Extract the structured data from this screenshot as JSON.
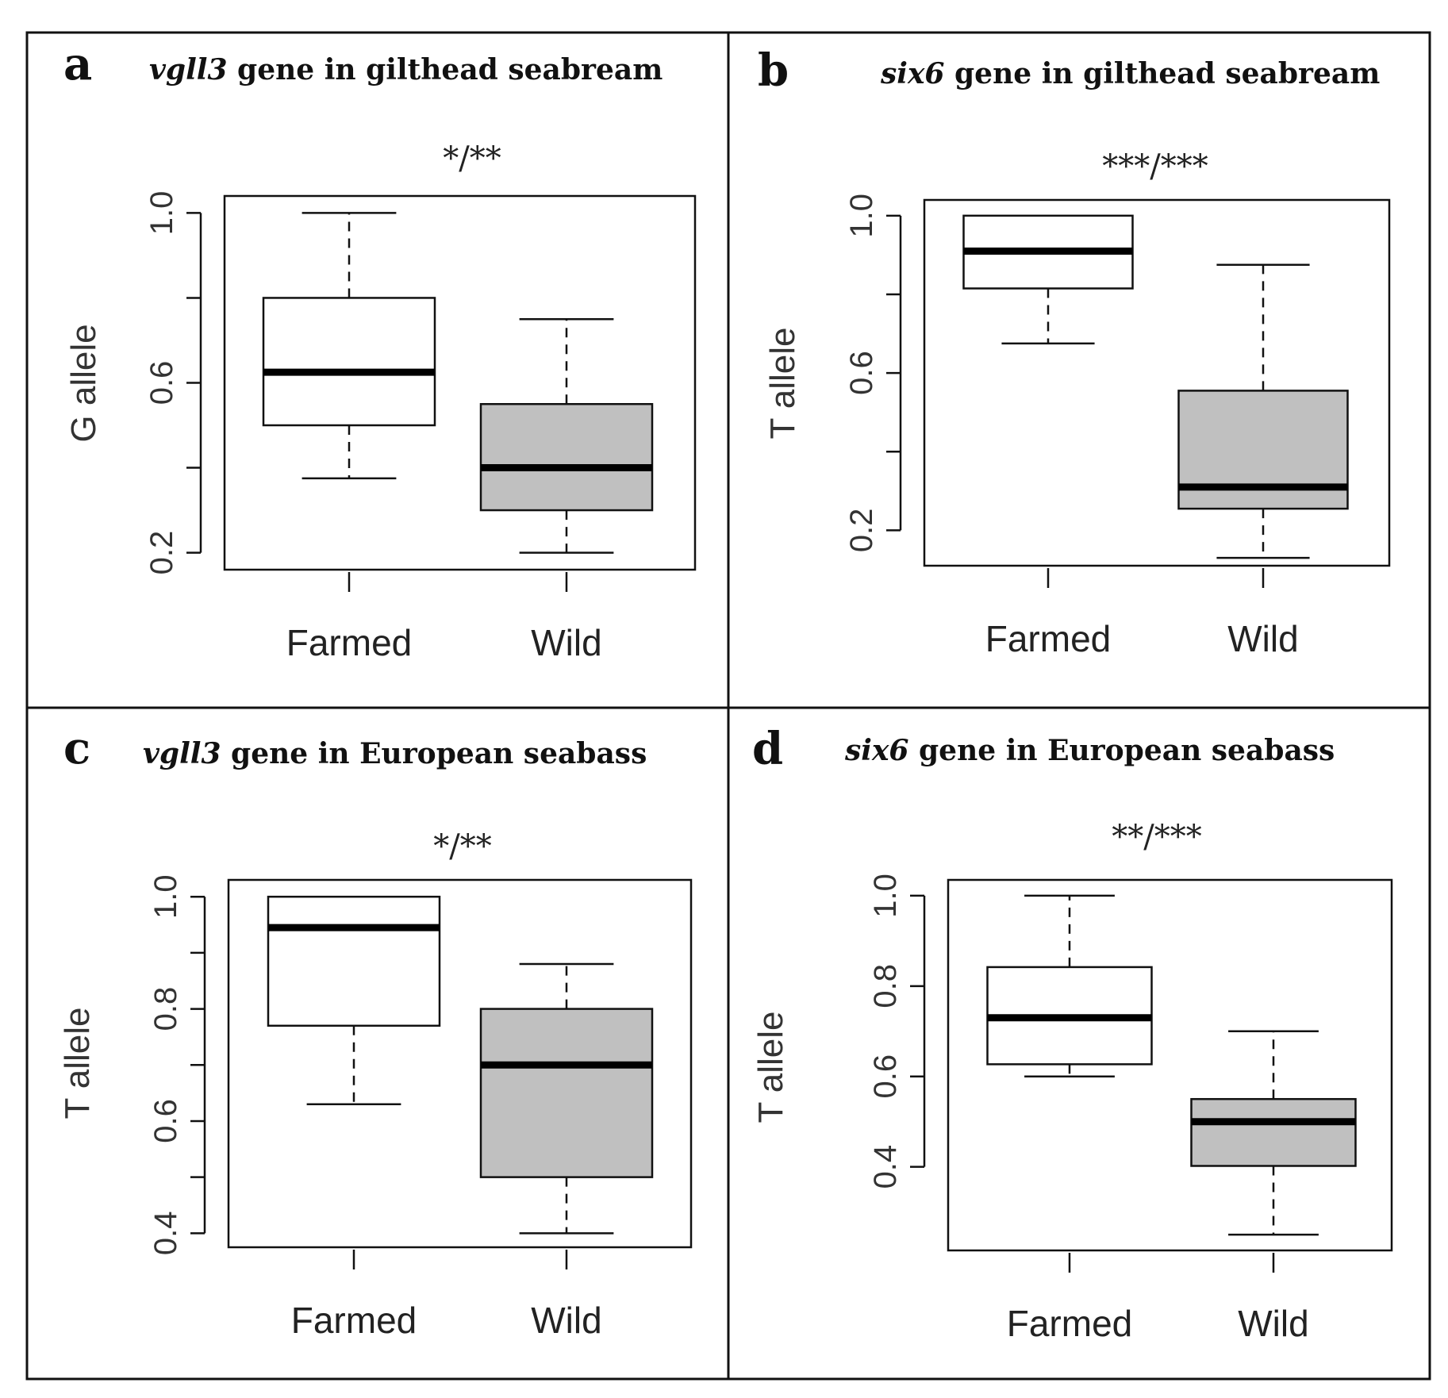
{
  "chart_data": [
    {
      "type": "box",
      "panel": "a",
      "title_gene": "vgll3",
      "title_rest": " gene in gilthead seabream",
      "significance": "*/**",
      "ylabel": "G allele",
      "yticks": [
        0.2,
        0.4,
        0.6,
        0.8,
        1.0
      ],
      "ytick_labels": [
        "0.2",
        "",
        "0.6",
        "",
        "1.0"
      ],
      "ylim": [
        0.16,
        1.04
      ],
      "categories": [
        "Farmed",
        "Wild"
      ],
      "boxes": [
        {
          "category": "Farmed",
          "fill": "#ffffff",
          "whisker_low": 0.375,
          "q1": 0.5,
          "median": 0.625,
          "q3": 0.8,
          "whisker_high": 1.0
        },
        {
          "category": "Wild",
          "fill": "#c0c0c0",
          "whisker_low": 0.2,
          "q1": 0.3,
          "median": 0.4,
          "q3": 0.55,
          "whisker_high": 0.75
        }
      ]
    },
    {
      "type": "box",
      "panel": "b",
      "title_gene": "six6",
      "title_rest": " gene in gilthead seabream",
      "significance": "***/***",
      "ylabel": "T allele",
      "yticks": [
        0.2,
        0.4,
        0.6,
        0.8,
        1.0
      ],
      "ytick_labels": [
        "0.2",
        "",
        "0.6",
        "",
        "1.0"
      ],
      "ylim": [
        0.11,
        1.04
      ],
      "categories": [
        "Farmed",
        "Wild"
      ],
      "boxes": [
        {
          "category": "Farmed",
          "fill": "#ffffff",
          "whisker_low": 0.675,
          "q1": 0.815,
          "median": 0.91,
          "q3": 1.0,
          "whisker_high": 1.0
        },
        {
          "category": "Wild",
          "fill": "#c0c0c0",
          "whisker_low": 0.13,
          "q1": 0.255,
          "median": 0.31,
          "q3": 0.555,
          "whisker_high": 0.875
        }
      ]
    },
    {
      "type": "box",
      "panel": "c",
      "title_gene": "vgll3",
      "title_rest": " gene in European seabass",
      "significance": "*/**",
      "ylabel": "T allele",
      "yticks": [
        0.4,
        0.5,
        0.6,
        0.7,
        0.8,
        0.9,
        1.0
      ],
      "ytick_labels": [
        "0.4",
        "",
        "0.6",
        "",
        "0.8",
        "",
        "1.0"
      ],
      "ylim": [
        0.375,
        1.03
      ],
      "categories": [
        "Farmed",
        "Wild"
      ],
      "boxes": [
        {
          "category": "Farmed",
          "fill": "#ffffff",
          "whisker_low": 0.63,
          "q1": 0.77,
          "median": 0.945,
          "q3": 1.0,
          "whisker_high": 1.0
        },
        {
          "category": "Wild",
          "fill": "#c0c0c0",
          "whisker_low": 0.4,
          "q1": 0.5,
          "median": 0.7,
          "q3": 0.8,
          "whisker_high": 0.88
        }
      ]
    },
    {
      "type": "box",
      "panel": "d",
      "title_gene": "six6",
      "title_rest": " gene in European seabass",
      "significance": "**/***",
      "ylabel": "T allele",
      "yticks": [
        0.4,
        0.6,
        0.8,
        1.0
      ],
      "ytick_labels": [
        "0.4",
        "0.6",
        "0.8",
        "1.0"
      ],
      "ylim": [
        0.215,
        1.035
      ],
      "categories": [
        "Farmed",
        "Wild"
      ],
      "boxes": [
        {
          "category": "Farmed",
          "fill": "#ffffff",
          "whisker_low": 0.6,
          "q1": 0.627,
          "median": 0.73,
          "q3": 0.842,
          "whisker_high": 1.0
        },
        {
          "category": "Wild",
          "fill": "#c0c0c0",
          "whisker_low": 0.25,
          "q1": 0.402,
          "median": 0.5,
          "q3": 0.55,
          "whisker_high": 0.7
        }
      ]
    }
  ]
}
